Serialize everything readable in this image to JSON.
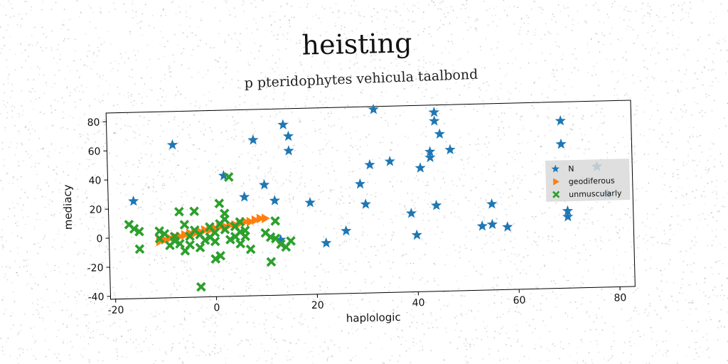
{
  "title": "heisting",
  "subtitle": "p pteridophytes vehicula taalbond",
  "chart_data": {
    "type": "scatter",
    "xlabel": "haplologic",
    "ylabel": "mediacy",
    "xlim": [
      -21,
      83
    ],
    "ylim": [
      -42,
      86
    ],
    "xticks": [
      -20,
      0,
      20,
      40,
      60,
      80
    ],
    "yticks": [
      -40,
      -20,
      0,
      20,
      40,
      60,
      80
    ],
    "grid": false,
    "legend_position": "center-right",
    "series": [
      {
        "name": "N",
        "marker": "star",
        "color": "#1f77b4",
        "points": [
          [
            -8,
            63
          ],
          [
            -16,
            25
          ],
          [
            2,
            41
          ],
          [
            6,
            26
          ],
          [
            8,
            65
          ],
          [
            10,
            34
          ],
          [
            12,
            23
          ],
          [
            14,
            75
          ],
          [
            15,
            67
          ],
          [
            15,
            57
          ],
          [
            13,
            -4
          ],
          [
            19,
            21
          ],
          [
            22,
            -7
          ],
          [
            26,
            1
          ],
          [
            29,
            33
          ],
          [
            30,
            19
          ],
          [
            31,
            46
          ],
          [
            32,
            84
          ],
          [
            35,
            48
          ],
          [
            39,
            12
          ],
          [
            40,
            -3
          ],
          [
            41,
            43
          ],
          [
            43,
            54
          ],
          [
            43,
            50
          ],
          [
            44,
            81
          ],
          [
            44,
            75
          ],
          [
            44,
            17
          ],
          [
            45,
            66
          ],
          [
            47,
            55
          ],
          [
            53,
            2
          ],
          [
            55,
            3
          ],
          [
            55,
            17
          ],
          [
            58,
            1
          ],
          [
            69,
            73
          ],
          [
            69,
            57
          ],
          [
            70,
            11
          ],
          [
            70,
            7
          ],
          [
            76,
            41
          ],
          [
            78,
            22
          ]
        ]
      },
      {
        "name": "geodiferous",
        "marker": "triangle-right",
        "color": "#ff7f0e",
        "points": [
          [
            -11,
            -3
          ],
          [
            -10,
            -2
          ],
          [
            -9,
            -1
          ],
          [
            -8,
            0
          ],
          [
            -7,
            0
          ],
          [
            -6,
            1
          ],
          [
            -5,
            2
          ],
          [
            -4,
            2
          ],
          [
            -3,
            3
          ],
          [
            -2,
            4
          ],
          [
            -1,
            4
          ],
          [
            0,
            5
          ],
          [
            1,
            6
          ],
          [
            2,
            6
          ],
          [
            3,
            7
          ],
          [
            4,
            7
          ],
          [
            5,
            8
          ],
          [
            6,
            9
          ],
          [
            7,
            9
          ],
          [
            8,
            10
          ],
          [
            9,
            11
          ],
          [
            10,
            11
          ]
        ]
      },
      {
        "name": "unmuscularly",
        "marker": "x",
        "color": "#2ca02c",
        "points": [
          [
            -17,
            9
          ],
          [
            -16,
            6
          ],
          [
            -15,
            4
          ],
          [
            -15,
            -8
          ],
          [
            -11,
            4
          ],
          [
            -11,
            -1
          ],
          [
            -10,
            2
          ],
          [
            -9,
            -6
          ],
          [
            -8,
            0
          ],
          [
            -8,
            -3
          ],
          [
            -7,
            17
          ],
          [
            -7,
            -5
          ],
          [
            -6,
            -10
          ],
          [
            -6,
            8
          ],
          [
            -5,
            -6
          ],
          [
            -5,
            0
          ],
          [
            -4,
            17
          ],
          [
            -4,
            4
          ],
          [
            -3,
            -8
          ],
          [
            -3,
            1
          ],
          [
            -2,
            -3
          ],
          [
            -1,
            6
          ],
          [
            -1,
            -1
          ],
          [
            0,
            -16
          ],
          [
            0,
            -4
          ],
          [
            0,
            2
          ],
          [
            1,
            -14
          ],
          [
            1,
            8
          ],
          [
            1,
            22
          ],
          [
            2,
            15
          ],
          [
            2,
            4
          ],
          [
            2,
            11
          ],
          [
            3,
            40
          ],
          [
            3,
            -3
          ],
          [
            4,
            -1
          ],
          [
            4,
            6
          ],
          [
            5,
            2
          ],
          [
            5,
            9
          ],
          [
            5,
            -6
          ],
          [
            6,
            3
          ],
          [
            6,
            -1
          ],
          [
            7,
            -10
          ],
          [
            10,
            1
          ],
          [
            11,
            -2
          ],
          [
            11,
            -19
          ],
          [
            12,
            -3
          ],
          [
            12,
            9
          ],
          [
            13,
            -7
          ],
          [
            14,
            -9
          ],
          [
            15,
            -5
          ],
          [
            -3,
            -35
          ]
        ]
      }
    ]
  }
}
